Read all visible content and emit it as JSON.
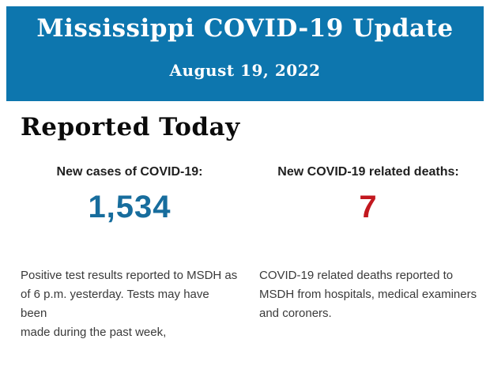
{
  "banner": {
    "title": "Mississippi COVID-19 Update",
    "date": "August 19, 2022",
    "bg_color": "#0d76ae",
    "text_color": "#ffffff"
  },
  "page": {
    "heading": "Reported Today",
    "background_color": "#ffffff"
  },
  "stats": {
    "cases": {
      "label": "New cases of COVID-19:",
      "value": "1,534",
      "value_color": "#176d9d",
      "description": "Positive test results reported to MSDH as\nof 6 p.m. yesterday. Tests may have been\nmade during the past week,"
    },
    "deaths": {
      "label": "New COVID-19 related deaths:",
      "value": "7",
      "value_color": "#c2181f",
      "description": "COVID-19 related deaths reported to\nMSDH from hospitals, medical examiners\nand coroners."
    }
  }
}
